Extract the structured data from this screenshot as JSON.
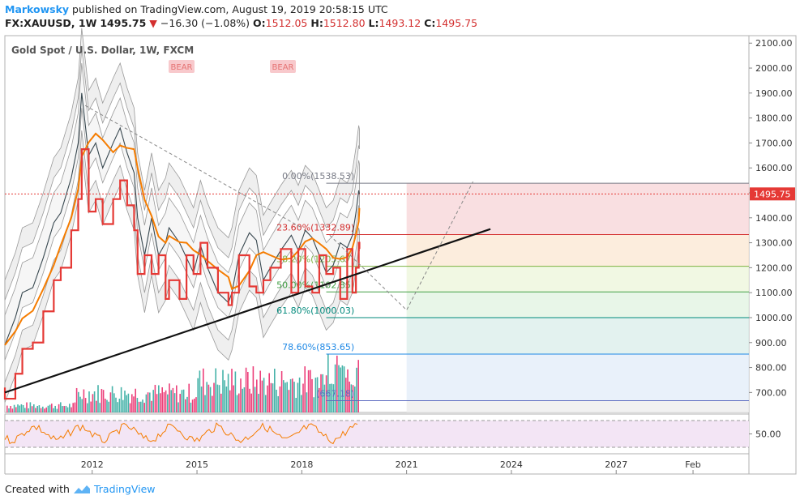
{
  "header": {
    "user": "Markowsky",
    "published": " published on TradingView.com, August 19, 2019 20:58:15 UTC",
    "symbol": "FX:XAUUSD, 1W",
    "last": "1495.75",
    "change": "−16.30 (−1.08%)",
    "o_label": "O:",
    "o": "1512.05",
    "h_label": "H:",
    "h": "1512.80",
    "l_label": "L:",
    "l": "1493.12",
    "c_label": "C:",
    "c": "1495.75",
    "down_arrow": "▼"
  },
  "legend": "Gold Spot / U.S. Dollar, 1W, FXCM",
  "labels": {
    "bear1": "BEAR",
    "bear2": "BEAR"
  },
  "footer": {
    "created": "Created with",
    "brand": "TradingView"
  },
  "colors": {
    "accent": "#2196f3",
    "down": "#d32f2f",
    "price_tag": "#e53935",
    "up_vol": "#26a69a",
    "down_vol": "#e91e63"
  },
  "chart_data": {
    "type": "line",
    "title": "Gold Spot / U.S. Dollar, 1W, FXCM",
    "ylim": [
      620,
      2130
    ],
    "yticks": [
      "2100.00",
      "2000.00",
      "1900.00",
      "1800.00",
      "1700.00",
      "1600.00",
      "1500.00",
      "1400.00",
      "1300.00",
      "1200.00",
      "1100.00",
      "1000.00",
      "900.00",
      "800.00",
      "700.00"
    ],
    "xlim": [
      2009.5,
      2030.8
    ],
    "xticks": [
      {
        "label": "2012",
        "x": 2012
      },
      {
        "label": "2015",
        "x": 2015
      },
      {
        "label": "2018",
        "x": 2018
      },
      {
        "label": "2021",
        "x": 2021
      },
      {
        "label": "2024",
        "x": 2024
      },
      {
        "label": "2027",
        "x": 2027
      },
      {
        "label": "Feb",
        "x": 2029.2
      }
    ],
    "last_price": 1495.75,
    "last_price_label": "1495.75",
    "price_series": [
      [
        2009.5,
        890
      ],
      [
        2009.8,
        1000
      ],
      [
        2010.0,
        1100
      ],
      [
        2010.3,
        1120
      ],
      [
        2010.6,
        1240
      ],
      [
        2010.9,
        1380
      ],
      [
        2011.1,
        1420
      ],
      [
        2011.4,
        1560
      ],
      [
        2011.6,
        1700
      ],
      [
        2011.7,
        1900
      ],
      [
        2011.9,
        1650
      ],
      [
        2012.1,
        1700
      ],
      [
        2012.3,
        1600
      ],
      [
        2012.6,
        1700
      ],
      [
        2012.8,
        1760
      ],
      [
        2013.0,
        1660
      ],
      [
        2013.2,
        1580
      ],
      [
        2013.3,
        1400
      ],
      [
        2013.5,
        1250
      ],
      [
        2013.7,
        1400
      ],
      [
        2013.9,
        1250
      ],
      [
        2014.1,
        1300
      ],
      [
        2014.2,
        1360
      ],
      [
        2014.5,
        1300
      ],
      [
        2014.7,
        1240
      ],
      [
        2014.9,
        1180
      ],
      [
        2015.1,
        1290
      ],
      [
        2015.3,
        1200
      ],
      [
        2015.6,
        1100
      ],
      [
        2015.9,
        1060
      ],
      [
        2016.0,
        1100
      ],
      [
        2016.2,
        1250
      ],
      [
        2016.5,
        1340
      ],
      [
        2016.7,
        1310
      ],
      [
        2016.9,
        1150
      ],
      [
        2017.1,
        1200
      ],
      [
        2017.4,
        1270
      ],
      [
        2017.7,
        1330
      ],
      [
        2017.9,
        1270
      ],
      [
        2018.1,
        1350
      ],
      [
        2018.3,
        1320
      ],
      [
        2018.5,
        1250
      ],
      [
        2018.7,
        1180
      ],
      [
        2018.9,
        1210
      ],
      [
        2019.1,
        1300
      ],
      [
        2019.3,
        1280
      ],
      [
        2019.45,
        1330
      ],
      [
        2019.55,
        1420
      ],
      [
        2019.63,
        1510
      ],
      [
        2019.65,
        1495.75
      ]
    ],
    "fibonacci": [
      {
        "level": "0.00%",
        "price": 1538.53,
        "label": "0.00%(1538.53)",
        "color": "#787b86"
      },
      {
        "level": "23.60%",
        "price": 1332.89,
        "label": "23.60%(1332.89)",
        "color": "#d32f2f"
      },
      {
        "level": "38.20%",
        "price": 1205.67,
        "label": "38.20%(1205.67)",
        "color": "#7cb342"
      },
      {
        "level": "50.00%",
        "price": 1102.85,
        "label": "50.00%(1102.85)",
        "color": "#43a047"
      },
      {
        "level": "61.80%",
        "price": 1000.03,
        "label": "61.80%(1000.03)",
        "color": "#00897b"
      },
      {
        "level": "78.60%",
        "price": 853.65,
        "label": "78.60%(853.65)",
        "color": "#1e88e5"
      },
      {
        "level": "100%",
        "price": 667.18,
        "label": "(667.18)",
        "color": "#5c6bc0"
      }
    ],
    "trendline": [
      [
        2009.5,
        700
      ],
      [
        2023.4,
        1355
      ]
    ],
    "projection": [
      [
        2018.8,
        1330
      ],
      [
        2021.0,
        1030
      ],
      [
        2022.9,
        1545
      ]
    ],
    "rsi": {
      "ytick": "50.00",
      "upper": 70,
      "lower": 30
    }
  }
}
